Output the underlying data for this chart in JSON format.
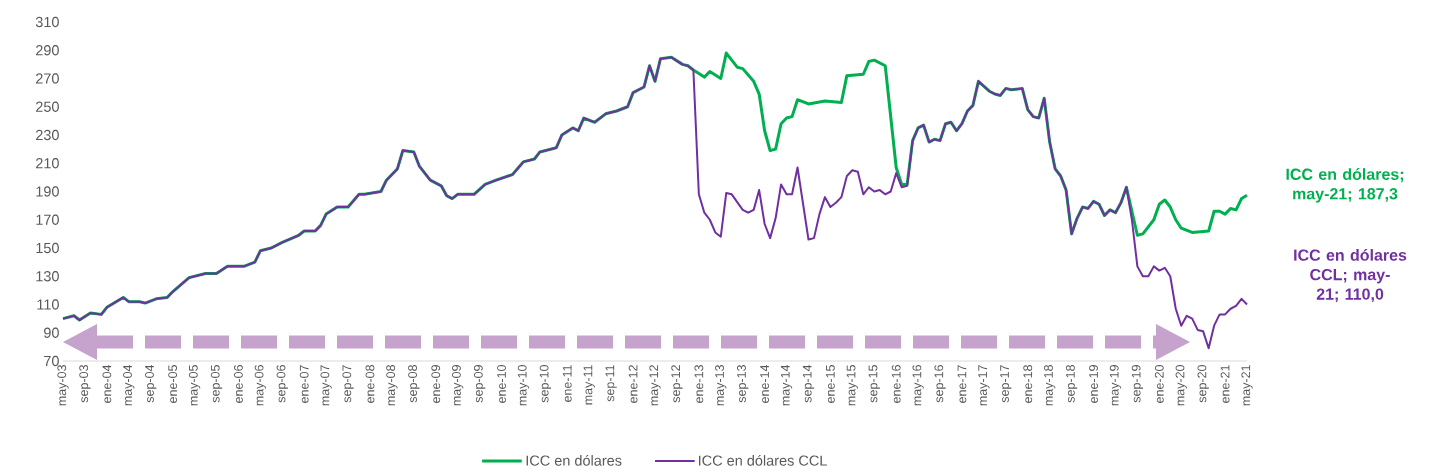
{
  "chart_data": {
    "type": "line",
    "xlim": [
      "2003-05",
      "2021-05"
    ],
    "ylim": [
      70,
      310
    ],
    "yticks": [
      70,
      90,
      110,
      130,
      150,
      170,
      190,
      210,
      230,
      250,
      270,
      290,
      310
    ],
    "xticks": [
      {
        "value": "2003-05",
        "label": "may-03"
      },
      {
        "value": "2003-09",
        "label": "sep-03"
      },
      {
        "value": "2004-01",
        "label": "ene-04"
      },
      {
        "value": "2004-05",
        "label": "may-04"
      },
      {
        "value": "2004-09",
        "label": "sep-04"
      },
      {
        "value": "2005-01",
        "label": "ene-05"
      },
      {
        "value": "2005-05",
        "label": "may-05"
      },
      {
        "value": "2005-09",
        "label": "sep-05"
      },
      {
        "value": "2006-01",
        "label": "ene-06"
      },
      {
        "value": "2006-05",
        "label": "may-06"
      },
      {
        "value": "2006-09",
        "label": "sep-06"
      },
      {
        "value": "2007-01",
        "label": "ene-07"
      },
      {
        "value": "2007-05",
        "label": "may-07"
      },
      {
        "value": "2007-09",
        "label": "sep-07"
      },
      {
        "value": "2008-01",
        "label": "ene-08"
      },
      {
        "value": "2008-05",
        "label": "may-08"
      },
      {
        "value": "2008-09",
        "label": "sep-08"
      },
      {
        "value": "2009-01",
        "label": "ene-09"
      },
      {
        "value": "2009-05",
        "label": "may-09"
      },
      {
        "value": "2009-09",
        "label": "sep-09"
      },
      {
        "value": "2010-01",
        "label": "ene-10"
      },
      {
        "value": "2010-05",
        "label": "may-10"
      },
      {
        "value": "2010-09",
        "label": "sep-10"
      },
      {
        "value": "2011-01",
        "label": "ene-11"
      },
      {
        "value": "2011-05",
        "label": "may-11"
      },
      {
        "value": "2011-09",
        "label": "sep-11"
      },
      {
        "value": "2012-01",
        "label": "ene-12"
      },
      {
        "value": "2012-05",
        "label": "may-12"
      },
      {
        "value": "2012-09",
        "label": "sep-12"
      },
      {
        "value": "2013-01",
        "label": "ene-13"
      },
      {
        "value": "2013-05",
        "label": "may-13"
      },
      {
        "value": "2013-09",
        "label": "sep-13"
      },
      {
        "value": "2014-01",
        "label": "ene-14"
      },
      {
        "value": "2014-05",
        "label": "may-14"
      },
      {
        "value": "2014-09",
        "label": "sep-14"
      },
      {
        "value": "2015-01",
        "label": "ene-15"
      },
      {
        "value": "2015-05",
        "label": "may-15"
      },
      {
        "value": "2015-09",
        "label": "sep-15"
      },
      {
        "value": "2016-01",
        "label": "ene-16"
      },
      {
        "value": "2016-05",
        "label": "may-16"
      },
      {
        "value": "2016-09",
        "label": "sep-16"
      },
      {
        "value": "2017-01",
        "label": "ene-17"
      },
      {
        "value": "2017-05",
        "label": "may-17"
      },
      {
        "value": "2017-09",
        "label": "sep-17"
      },
      {
        "value": "2018-01",
        "label": "ene-18"
      },
      {
        "value": "2018-05",
        "label": "may-18"
      },
      {
        "value": "2018-09",
        "label": "sep-18"
      },
      {
        "value": "2019-01",
        "label": "ene-19"
      },
      {
        "value": "2019-05",
        "label": "may-19"
      },
      {
        "value": "2019-09",
        "label": "sep-19"
      },
      {
        "value": "2020-01",
        "label": "ene-20"
      },
      {
        "value": "2020-05",
        "label": "may-20"
      },
      {
        "value": "2020-09",
        "label": "sep-20"
      },
      {
        "value": "2021-01",
        "label": "ene-21"
      },
      {
        "value": "2021-05",
        "label": "may-21"
      }
    ],
    "legend": "bottom",
    "series": [
      {
        "name": "ICC en dólares",
        "color": "#00b050",
        "x": [
          "2003-05",
          "2003-07",
          "2003-08",
          "2003-10",
          "2003-12",
          "2004-01",
          "2004-04",
          "2004-05",
          "2004-07",
          "2004-08",
          "2004-10",
          "2004-12",
          "2005-01",
          "2005-04",
          "2005-07",
          "2005-09",
          "2005-11",
          "2006-02",
          "2006-04",
          "2006-05",
          "2006-07",
          "2006-09",
          "2006-12",
          "2007-01",
          "2007-03",
          "2007-04",
          "2007-05",
          "2007-07",
          "2007-09",
          "2007-11",
          "2007-12",
          "2008-03",
          "2008-04",
          "2008-06",
          "2008-07",
          "2008-09",
          "2008-10",
          "2008-12",
          "2009-02",
          "2009-03",
          "2009-04",
          "2009-05",
          "2009-08",
          "2009-10",
          "2009-12",
          "2010-03",
          "2010-05",
          "2010-07",
          "2010-08",
          "2010-11",
          "2010-12",
          "2011-02",
          "2011-03",
          "2011-04",
          "2011-06",
          "2011-08",
          "2011-10",
          "2011-12",
          "2012-01",
          "2012-03",
          "2012-04",
          "2012-05",
          "2012-06",
          "2012-08",
          "2012-10",
          "2012-11",
          "2012-12",
          "2013-02",
          "2013-03",
          "2013-05",
          "2013-06",
          "2013-08",
          "2013-09",
          "2013-11",
          "2013-12",
          "2014-01",
          "2014-02",
          "2014-03",
          "2014-04",
          "2014-05",
          "2014-06",
          "2014-07",
          "2014-09",
          "2014-12",
          "2015-03",
          "2015-04",
          "2015-07",
          "2015-08",
          "2015-09",
          "2015-11",
          "2016-01",
          "2016-02",
          "2016-03",
          "2016-04",
          "2016-05",
          "2016-06",
          "2016-07",
          "2016-08",
          "2016-09",
          "2016-10",
          "2016-11",
          "2016-12",
          "2017-01",
          "2017-02",
          "2017-03",
          "2017-04",
          "2017-06",
          "2017-07",
          "2017-08",
          "2017-09",
          "2017-10",
          "2017-12",
          "2018-01",
          "2018-02",
          "2018-03",
          "2018-04",
          "2018-05",
          "2018-06",
          "2018-07",
          "2018-08",
          "2018-09",
          "2018-10",
          "2018-11",
          "2018-12",
          "2019-01",
          "2019-02",
          "2019-03",
          "2019-04",
          "2019-05",
          "2019-06",
          "2019-07",
          "2019-09",
          "2019-10",
          "2019-12",
          "2020-01",
          "2020-02",
          "2020-03",
          "2020-04",
          "2020-05",
          "2020-07",
          "2020-10",
          "2020-11",
          "2020-12",
          "2021-01",
          "2021-02",
          "2021-03",
          "2021-04",
          "2021-05"
        ],
        "values": [
          100,
          102,
          99,
          104,
          103,
          108,
          115,
          112,
          112,
          111,
          114,
          115,
          119,
          129,
          132,
          132,
          137,
          137,
          140,
          148,
          150,
          154,
          159,
          162,
          162,
          166,
          174,
          179,
          179,
          188,
          188,
          190,
          198,
          206,
          219,
          218,
          208,
          198,
          194,
          187,
          185,
          188,
          188,
          195,
          198,
          202,
          211,
          213,
          218,
          221,
          230,
          235,
          233,
          242,
          239,
          245,
          247,
          250,
          260,
          264,
          279,
          268,
          284,
          285,
          280,
          279,
          276,
          271,
          275,
          270,
          288,
          278,
          277,
          268,
          259,
          233,
          219,
          220,
          238,
          242,
          243,
          255,
          252,
          254,
          253,
          272,
          273,
          282,
          283,
          279,
          207,
          195,
          195,
          226,
          235,
          237,
          225,
          227,
          226,
          238,
          239,
          233,
          238,
          247,
          251,
          268,
          261,
          259,
          258,
          263,
          262,
          263,
          248,
          243,
          242,
          256,
          225,
          206,
          201,
          191,
          160,
          171,
          179,
          178,
          183,
          181,
          173,
          177,
          175,
          182,
          193,
          159,
          160,
          170,
          181,
          184,
          179,
          170,
          164,
          161,
          162,
          176,
          176,
          174,
          178,
          177,
          185,
          187.3
        ]
      },
      {
        "name": "ICC en dólares CCL",
        "color": "#7030a0",
        "x": [
          "2003-05",
          "2003-07",
          "2003-08",
          "2003-10",
          "2003-12",
          "2004-01",
          "2004-04",
          "2004-05",
          "2004-07",
          "2004-08",
          "2004-10",
          "2004-12",
          "2005-01",
          "2005-04",
          "2005-07",
          "2005-09",
          "2005-11",
          "2006-02",
          "2006-04",
          "2006-05",
          "2006-07",
          "2006-09",
          "2006-12",
          "2007-01",
          "2007-03",
          "2007-04",
          "2007-05",
          "2007-07",
          "2007-09",
          "2007-11",
          "2007-12",
          "2008-03",
          "2008-04",
          "2008-06",
          "2008-07",
          "2008-09",
          "2008-10",
          "2008-12",
          "2009-02",
          "2009-03",
          "2009-04",
          "2009-05",
          "2009-08",
          "2009-10",
          "2009-12",
          "2010-03",
          "2010-05",
          "2010-07",
          "2010-08",
          "2010-11",
          "2010-12",
          "2011-02",
          "2011-03",
          "2011-04",
          "2011-06",
          "2011-08",
          "2011-10",
          "2011-12",
          "2012-01",
          "2012-03",
          "2012-04",
          "2012-05",
          "2012-06",
          "2012-08",
          "2012-10",
          "2012-11",
          "2012-12",
          "2013-01",
          "2013-02",
          "2013-03",
          "2013-04",
          "2013-05",
          "2013-06",
          "2013-07",
          "2013-09",
          "2013-10",
          "2013-11",
          "2013-12",
          "2014-01",
          "2014-02",
          "2014-03",
          "2014-04",
          "2014-05",
          "2014-06",
          "2014-07",
          "2014-09",
          "2014-10",
          "2014-11",
          "2014-12",
          "2015-01",
          "2015-02",
          "2015-03",
          "2015-04",
          "2015-05",
          "2015-06",
          "2015-07",
          "2015-08",
          "2015-09",
          "2015-10",
          "2015-11",
          "2015-12",
          "2016-01",
          "2016-02",
          "2016-03",
          "2016-04",
          "2016-05",
          "2016-06",
          "2016-07",
          "2016-08",
          "2016-09",
          "2016-10",
          "2016-11",
          "2016-12",
          "2017-01",
          "2017-02",
          "2017-03",
          "2017-04",
          "2017-06",
          "2017-07",
          "2017-08",
          "2017-09",
          "2017-10",
          "2017-12",
          "2018-01",
          "2018-02",
          "2018-03",
          "2018-04",
          "2018-05",
          "2018-06",
          "2018-07",
          "2018-08",
          "2018-09",
          "2018-10",
          "2018-11",
          "2018-12",
          "2019-01",
          "2019-02",
          "2019-03",
          "2019-04",
          "2019-05",
          "2019-06",
          "2019-07",
          "2019-08",
          "2019-09",
          "2019-10",
          "2019-11",
          "2019-12",
          "2020-01",
          "2020-02",
          "2020-03",
          "2020-04",
          "2020-05",
          "2020-06",
          "2020-07",
          "2020-08",
          "2020-09",
          "2020-10",
          "2020-11",
          "2020-12",
          "2021-01",
          "2021-02",
          "2021-03",
          "2021-04",
          "2021-05"
        ],
        "values": [
          100,
          102,
          99,
          104,
          103,
          108,
          115,
          112,
          112,
          111,
          114,
          115,
          119,
          129,
          132,
          132,
          137,
          137,
          140,
          148,
          150,
          154,
          159,
          162,
          162,
          166,
          174,
          179,
          179,
          188,
          188,
          190,
          198,
          206,
          219,
          218,
          208,
          198,
          194,
          187,
          185,
          188,
          188,
          195,
          198,
          202,
          211,
          213,
          218,
          221,
          230,
          235,
          233,
          242,
          239,
          245,
          247,
          250,
          260,
          264,
          279,
          268,
          284,
          285,
          280,
          279,
          276,
          188,
          175,
          170,
          161,
          158,
          189,
          188,
          177,
          175,
          177,
          191,
          167,
          157,
          171,
          195,
          188,
          188,
          207,
          156,
          157,
          174,
          186,
          179,
          182,
          186,
          201,
          205,
          204,
          188,
          193,
          190,
          191,
          188,
          190,
          203,
          193,
          194,
          226,
          235,
          237,
          225,
          227,
          226,
          238,
          239,
          233,
          238,
          247,
          251,
          268,
          261,
          259,
          258,
          263,
          262,
          263,
          248,
          243,
          242,
          256,
          225,
          206,
          201,
          191,
          160,
          171,
          179,
          178,
          183,
          181,
          173,
          177,
          175,
          182,
          193,
          170,
          137,
          130,
          130,
          137,
          134,
          136,
          130,
          107,
          95,
          102,
          100,
          92,
          91,
          79,
          95,
          103,
          103,
          107,
          109,
          114,
          110.0
        ]
      }
    ],
    "annotations": [
      {
        "text": "ICC en dólares; may-21; 187,3",
        "x": "2021-05",
        "y": 187.3
      },
      {
        "text": "ICC en dólares CCL; may-21; 110,0",
        "x": "2021-05",
        "y": 110.0
      }
    ]
  }
}
